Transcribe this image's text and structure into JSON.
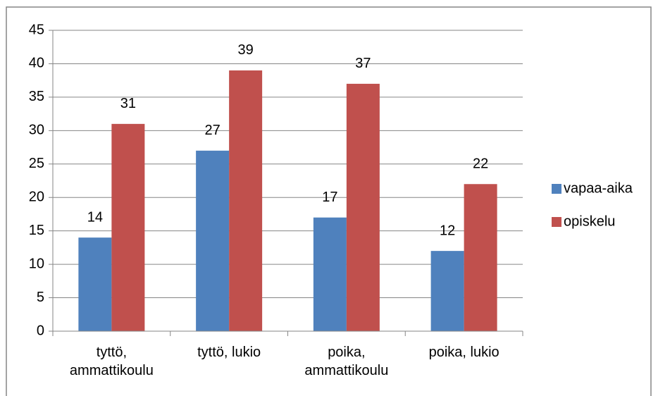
{
  "chart_data": {
    "type": "bar",
    "categories": [
      "tyttö, ammattikoulu",
      "tyttö, lukio",
      "poika, ammattikoulu",
      "poika, lukio"
    ],
    "series": [
      {
        "name": "vapaa-aika",
        "color": "#4f81bd",
        "values": [
          14,
          27,
          17,
          12
        ]
      },
      {
        "name": "opiskelu",
        "color": "#c0504d",
        "values": [
          31,
          39,
          37,
          22
        ]
      }
    ],
    "ylim": [
      0,
      45
    ],
    "yticks": [
      0,
      5,
      10,
      15,
      20,
      25,
      30,
      35,
      40,
      45
    ],
    "grid": true,
    "legend": "right"
  }
}
